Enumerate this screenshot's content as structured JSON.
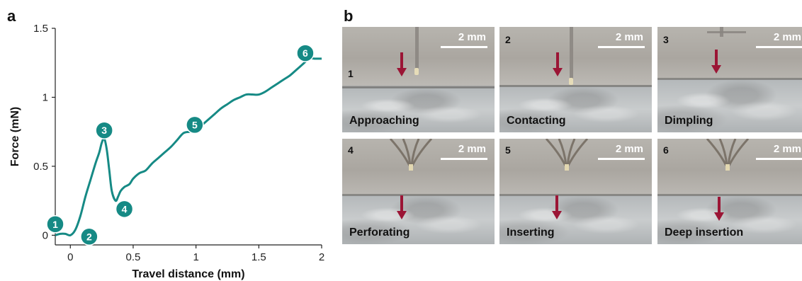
{
  "panels": {
    "a_label": "a",
    "b_label": "b"
  },
  "chart_data": {
    "type": "line",
    "xlabel": "Travel distance (mm)",
    "ylabel": "Force (mN)",
    "xlim": [
      -0.12,
      2.0
    ],
    "ylim": [
      -0.07,
      1.5
    ],
    "xticks": [
      0,
      0.5,
      1,
      1.5,
      2
    ],
    "xtick_labels": [
      "0",
      "0.5",
      "1",
      "1.5",
      "2"
    ],
    "yticks": [
      0,
      0.5,
      1,
      1.5
    ],
    "ytick_labels": [
      "0",
      "0.5",
      "1",
      "1.5"
    ],
    "grid": false,
    "line_color": "#168a85",
    "series": [
      {
        "x": [
          -0.12,
          -0.08,
          -0.04,
          0.0,
          0.04,
          0.08,
          0.12,
          0.16,
          0.2,
          0.23,
          0.25,
          0.27,
          0.29,
          0.31,
          0.33,
          0.36,
          0.38,
          0.4,
          0.43,
          0.47,
          0.5,
          0.55,
          0.6,
          0.65,
          0.7,
          0.75,
          0.8,
          0.85,
          0.9,
          0.95,
          1.0,
          1.05,
          1.1,
          1.15,
          1.2,
          1.25,
          1.3,
          1.35,
          1.4,
          1.45,
          1.5,
          1.55,
          1.6,
          1.65,
          1.7,
          1.75,
          1.8,
          1.85,
          1.9,
          1.95,
          2.0
        ],
        "y": [
          0.0,
          0.01,
          0.01,
          0.0,
          0.04,
          0.14,
          0.28,
          0.4,
          0.52,
          0.6,
          0.67,
          0.7,
          0.62,
          0.47,
          0.32,
          0.25,
          0.28,
          0.32,
          0.35,
          0.37,
          0.41,
          0.45,
          0.47,
          0.52,
          0.56,
          0.6,
          0.64,
          0.69,
          0.74,
          0.75,
          0.76,
          0.8,
          0.84,
          0.88,
          0.92,
          0.95,
          0.98,
          1.0,
          1.02,
          1.02,
          1.02,
          1.04,
          1.07,
          1.1,
          1.13,
          1.16,
          1.2,
          1.24,
          1.28,
          1.28,
          1.28
        ]
      }
    ],
    "markers": [
      {
        "label": "1",
        "x": -0.12,
        "y": 0.08
      },
      {
        "label": "2",
        "x": 0.15,
        "y": -0.01
      },
      {
        "label": "3",
        "x": 0.27,
        "y": 0.76
      },
      {
        "label": "4",
        "x": 0.43,
        "y": 0.19
      },
      {
        "label": "5",
        "x": 0.99,
        "y": 0.8
      },
      {
        "label": "6",
        "x": 1.87,
        "y": 1.32
      }
    ]
  },
  "photos": [
    {
      "num": "1",
      "caption": "Approaching",
      "scale": "2 mm"
    },
    {
      "num": "2",
      "caption": "Contacting",
      "scale": "2 mm"
    },
    {
      "num": "3",
      "caption": "Dimpling",
      "scale": "2 mm"
    },
    {
      "num": "4",
      "caption": "Perforating",
      "scale": "2 mm"
    },
    {
      "num": "5",
      "caption": "Inserting",
      "scale": "2 mm"
    },
    {
      "num": "6",
      "caption": "Deep insertion",
      "scale": "2 mm"
    }
  ],
  "colors": {
    "arrow": "#9b1535",
    "marker_fill": "#168a85"
  }
}
